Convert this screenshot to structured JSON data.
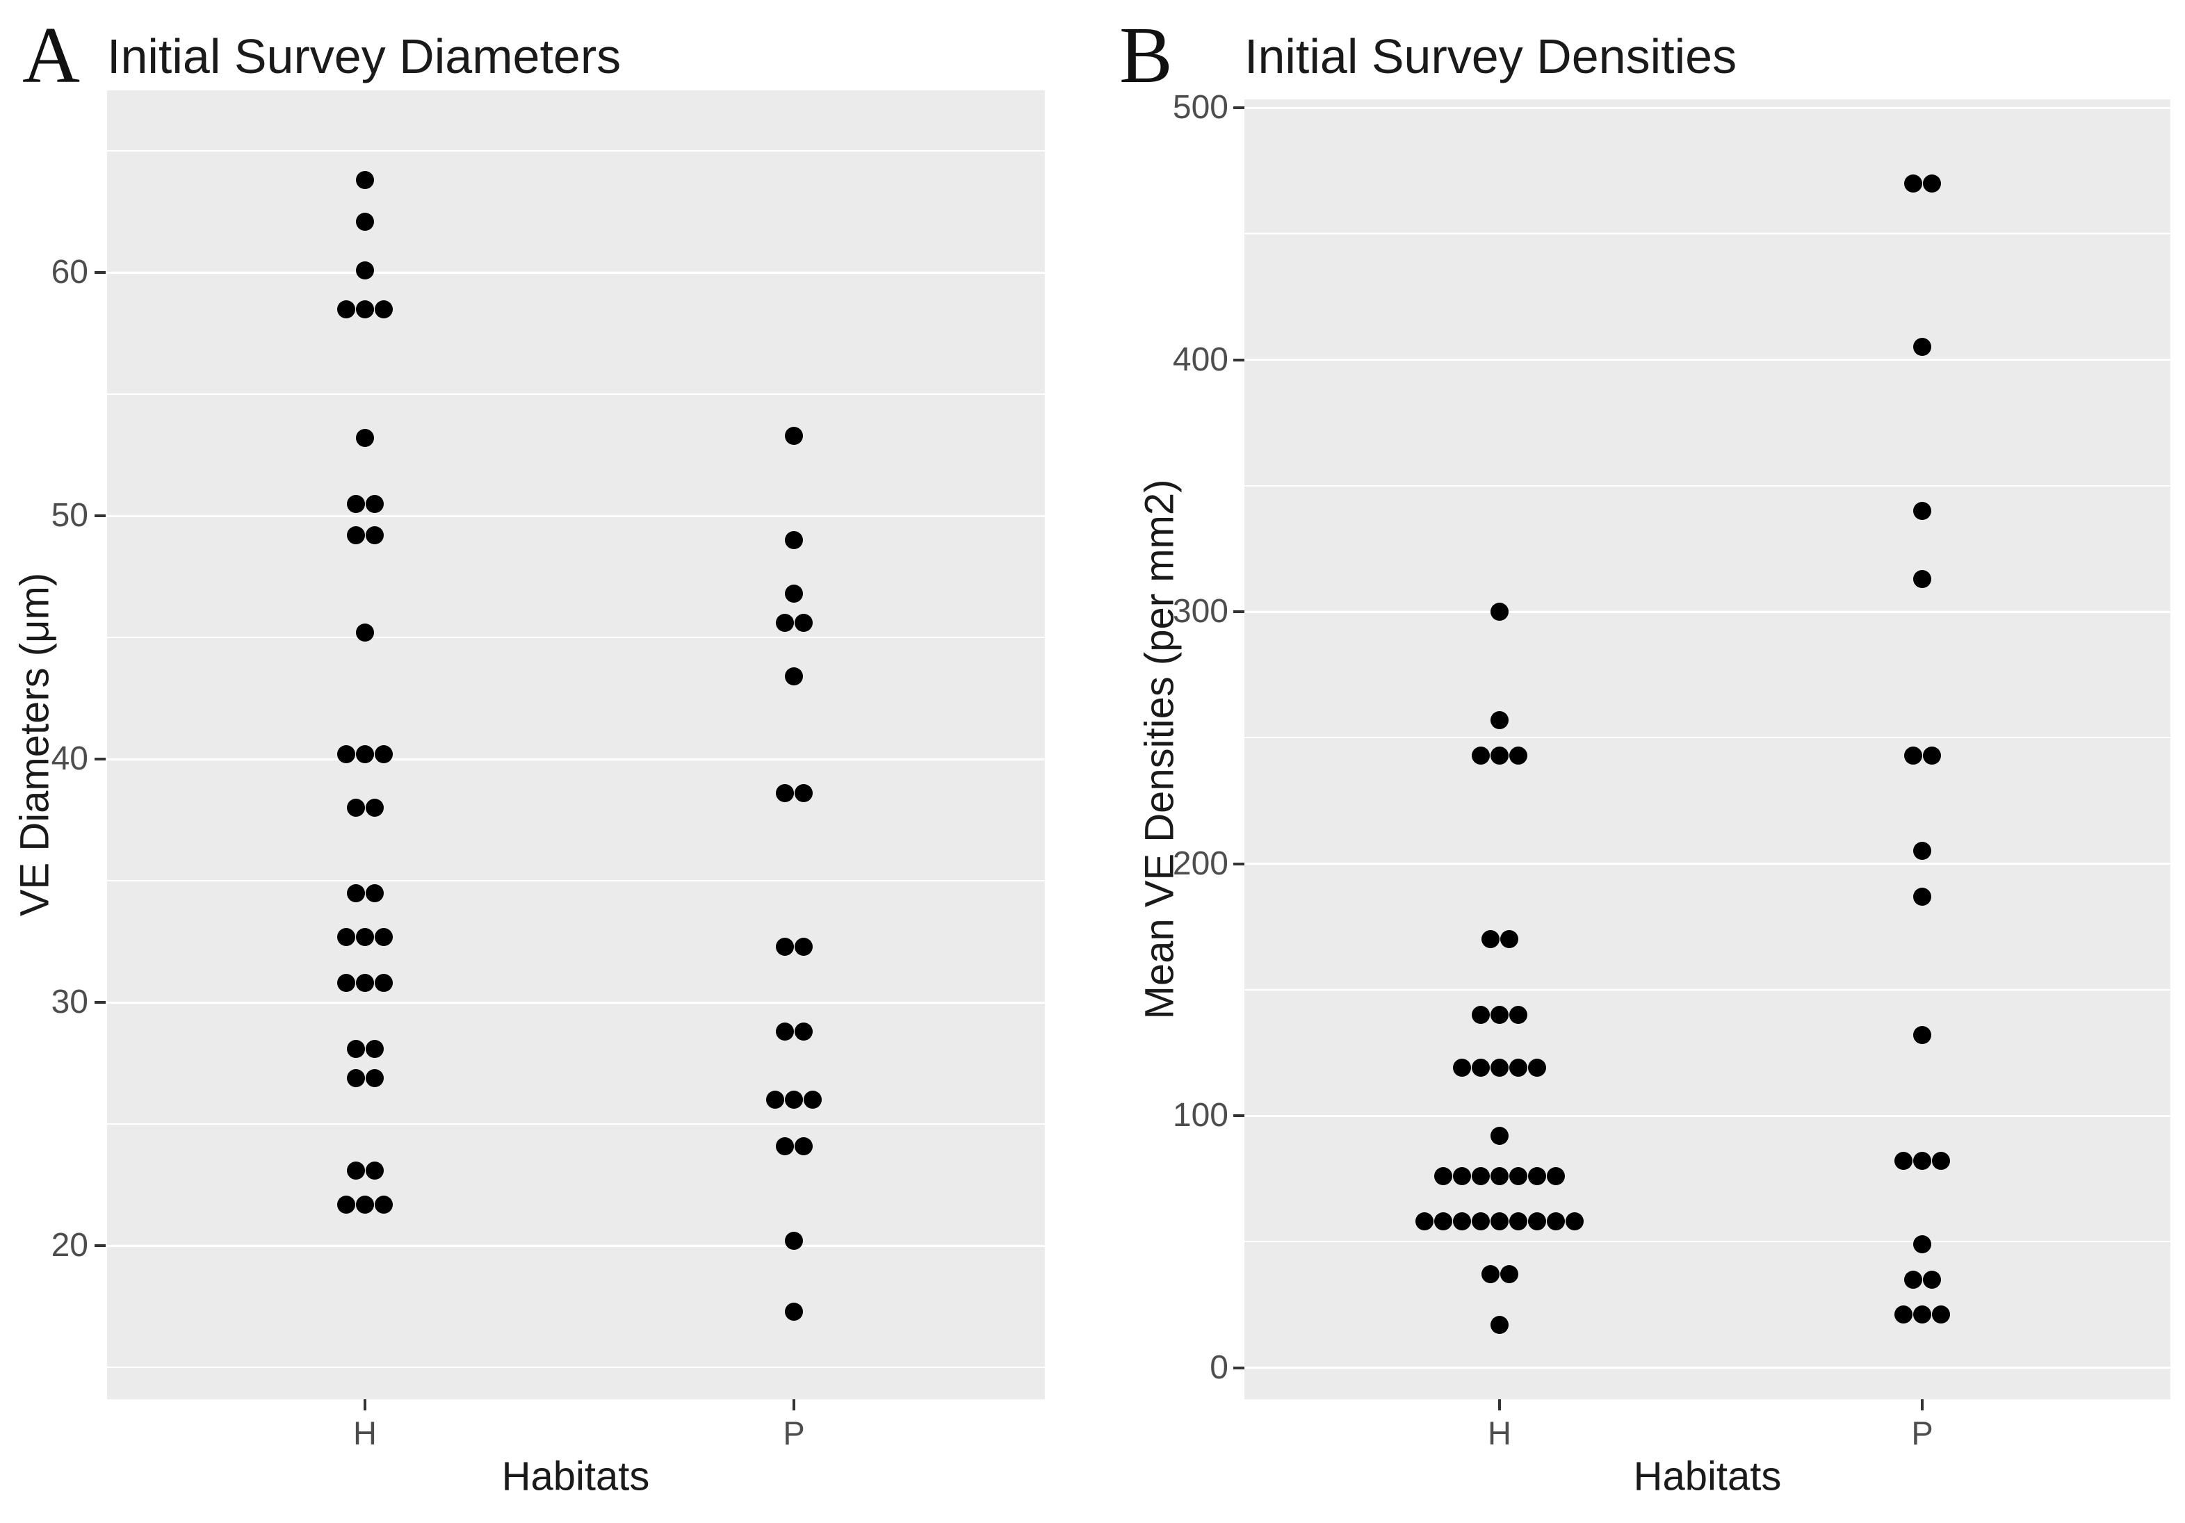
{
  "colors": {
    "panel_background": "#ebebeb",
    "gridline": "#ffffff",
    "point": "#000000",
    "tick_text": "#4d4d4d",
    "title_text": "#1a1a1a"
  },
  "chart_data": [
    {
      "type": "scatter",
      "variant": "stacked-dot-plot",
      "panel_label": "A",
      "title": "Initial Survey Diameters",
      "xlabel": "Habitats",
      "ylabel": "VE Diameters (μm)",
      "categories": [
        "H",
        "P"
      ],
      "y_ticks": [
        20,
        30,
        40,
        50,
        60
      ],
      "y_minor_gridlines": [
        15,
        25,
        35,
        45,
        55,
        65
      ],
      "ylim": [
        13.6,
        67.4
      ],
      "grid": "on",
      "legend": "none",
      "series": [
        {
          "name": "H",
          "values": [
            63.8,
            62.1,
            60.1,
            58.5,
            58.5,
            58.5,
            53.2,
            50.5,
            50.5,
            49.2,
            49.2,
            45.2,
            40.2,
            40.2,
            40.2,
            38,
            38,
            34.5,
            34.5,
            32.7,
            32.7,
            32.7,
            30.8,
            30.8,
            30.8,
            28.1,
            28.1,
            26.9,
            26.9,
            23.1,
            23.1,
            21.7,
            21.7,
            21.7
          ]
        },
        {
          "name": "P",
          "values": [
            53.3,
            49,
            46.8,
            45.6,
            45.6,
            43.4,
            38.6,
            38.6,
            32.3,
            32.3,
            28.8,
            28.8,
            26,
            26,
            26,
            24.1,
            24.1,
            20.2,
            17.3
          ]
        }
      ]
    },
    {
      "type": "scatter",
      "variant": "stacked-dot-plot",
      "panel_label": "B",
      "title": "Initial Survey Densities",
      "xlabel": "Habitats",
      "ylabel": "Mean VE Densities (per mm2)",
      "categories": [
        "H",
        "P"
      ],
      "y_ticks": [
        0,
        100,
        200,
        300,
        400,
        500
      ],
      "y_minor_gridlines": [
        50,
        150,
        250,
        350,
        450
      ],
      "ylim": [
        -12.6,
        503
      ],
      "grid": "on",
      "legend": "none",
      "series": [
        {
          "name": "H",
          "values": [
            300,
            257,
            243,
            243,
            243,
            170,
            170,
            140,
            140,
            140,
            119,
            119,
            119,
            119,
            119,
            92,
            76,
            76,
            76,
            76,
            76,
            76,
            76,
            58,
            58,
            58,
            58,
            58,
            58,
            58,
            58,
            58,
            37,
            37,
            17
          ]
        },
        {
          "name": "P",
          "values": [
            470,
            470,
            405,
            340,
            313,
            243,
            243,
            205,
            187,
            132,
            82,
            82,
            82,
            49,
            35,
            35,
            21,
            21,
            21
          ]
        }
      ]
    }
  ]
}
